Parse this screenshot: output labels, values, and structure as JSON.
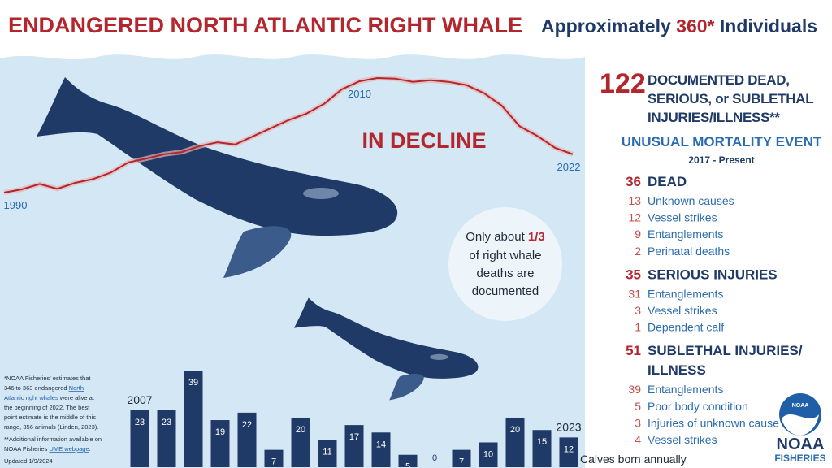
{
  "header": {
    "title": "ENDANGERED NORTH ATLANTIC RIGHT WHALE",
    "subtitle_before": "Approximately",
    "count": "360*",
    "subtitle_after": "Individuals"
  },
  "chart_data": [
    {
      "type": "line",
      "annotation": "IN DECLINE",
      "x": [
        1990,
        1991,
        1992,
        1993,
        1994,
        1995,
        1996,
        1997,
        1998,
        1999,
        2000,
        2001,
        2002,
        2003,
        2004,
        2005,
        2006,
        2007,
        2008,
        2009,
        2010,
        2011,
        2012,
        2013,
        2014,
        2015,
        2016,
        2017,
        2018,
        2019,
        2020,
        2021,
        2022
      ],
      "xticks": [
        1990,
        2010,
        2022
      ],
      "series": [
        {
          "color": "#b3262d",
          "values": [
            270,
            276,
            286,
            277,
            288,
            295,
            307,
            326,
            333,
            341,
            345,
            356,
            363,
            359,
            374,
            389,
            404,
            416,
            434,
            461,
            476,
            482,
            481,
            475,
            478,
            475,
            469,
            454,
            431,
            393,
            375,
            353,
            341
          ]
        }
      ]
    },
    {
      "type": "bar",
      "x_label": "Calves born annually",
      "color": "#1f3a66",
      "categories": [
        "2007",
        null,
        null,
        null,
        null,
        null,
        null,
        null,
        null,
        null,
        null,
        null,
        null,
        null,
        null,
        null,
        "2023"
      ],
      "values": [
        23,
        23,
        39,
        19,
        22,
        7,
        20,
        11,
        17,
        14,
        5,
        0,
        7,
        10,
        20,
        15,
        12
      ]
    }
  ],
  "callout": {
    "lead": "Only about",
    "fraction": "1/3",
    "lines": [
      "of right whale",
      "deaths are",
      "documented"
    ]
  },
  "summary": {
    "total": "122",
    "lines": [
      "DOCUMENTED DEAD,",
      "SERIOUS, or SUBLETHAL",
      "INJURIES/ILLNESS**"
    ]
  },
  "ume": {
    "title": "UNUSUAL MORTALITY EVENT",
    "period": "2017 - Present",
    "groups": [
      {
        "total": 36,
        "title": [
          "DEAD"
        ],
        "items": [
          {
            "count": 13,
            "label": "Unknown causes"
          },
          {
            "count": 12,
            "label": "Vessel strikes"
          },
          {
            "count": 9,
            "label": "Entanglements"
          },
          {
            "count": 2,
            "label": "Perinatal deaths"
          }
        ]
      },
      {
        "total": 35,
        "title": [
          "SERIOUS INJURIES"
        ],
        "items": [
          {
            "count": 31,
            "label": "Entanglements"
          },
          {
            "count": 3,
            "label": "Vessel strikes"
          },
          {
            "count": 1,
            "label": "Dependent calf"
          }
        ]
      },
      {
        "total": 51,
        "title": [
          "SUBLETHAL INJURIES/",
          "ILLNESS"
        ],
        "items": [
          {
            "count": 39,
            "label": "Entanglements"
          },
          {
            "count": 5,
            "label": "Poor body condition"
          },
          {
            "count": 3,
            "label": "Injuries of unknown cause"
          },
          {
            "count": 4,
            "label": "Vessel strikes"
          }
        ]
      }
    ]
  },
  "footnote": {
    "lines": [
      [
        {
          "text": "*NOAA Fisheries' estimates that"
        }
      ],
      [
        {
          "text": "346 to 363 endangered "
        },
        {
          "text": "North",
          "link": true
        }
      ],
      [
        {
          "text": "Atlantic right whales",
          "link": true
        },
        {
          "text": " were alive at"
        }
      ],
      [
        {
          "text": "the beginning of 2022. The best"
        }
      ],
      [
        {
          "text": "point estimate is the middle of this"
        }
      ],
      [
        {
          "text": "range, 356 animals (Linden, 2023)."
        }
      ],
      [
        {
          "text": "**Additional information available on"
        }
      ],
      [
        {
          "text": "NOAA Fisheries "
        },
        {
          "text": "UME webpage",
          "link": true
        },
        {
          "text": "."
        }
      ],
      [
        {
          "text": "Updated 1/9/2024"
        }
      ]
    ]
  },
  "logo": {
    "badge": "NOAA",
    "name": "NOAA",
    "sub": "FISHERIES"
  }
}
